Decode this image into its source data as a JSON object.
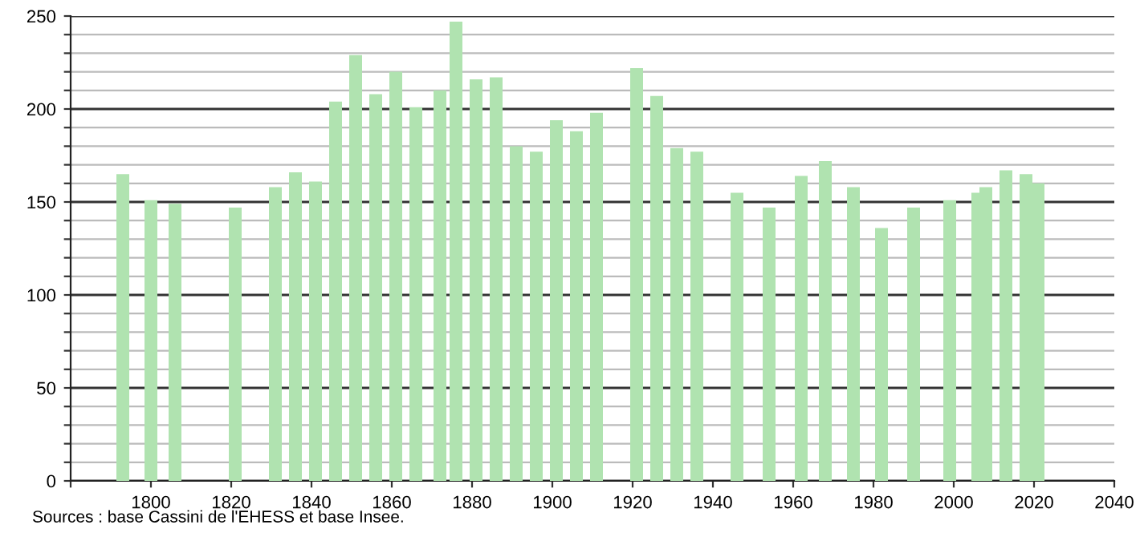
{
  "chart_data": {
    "type": "bar",
    "color": "#b0e3b0",
    "x": [
      1793,
      1800,
      1806,
      1821,
      1831,
      1836,
      1841,
      1846,
      1851,
      1856,
      1861,
      1866,
      1872,
      1876,
      1881,
      1886,
      1891,
      1896,
      1901,
      1906,
      1911,
      1921,
      1926,
      1931,
      1936,
      1946,
      1954,
      1962,
      1968,
      1975,
      1982,
      1990,
      1999,
      2006,
      2008,
      2013,
      2018,
      2021
    ],
    "values": [
      165,
      151,
      149,
      147,
      158,
      166,
      161,
      204,
      229,
      208,
      220,
      201,
      210,
      247,
      216,
      217,
      180,
      177,
      194,
      188,
      198,
      222,
      207,
      179,
      177,
      155,
      147,
      164,
      172,
      158,
      136,
      147,
      151,
      155,
      158,
      167,
      165,
      160
    ],
    "xlim": [
      1780,
      2040
    ],
    "xticks": [
      {
        "value": 1780,
        "label": null
      },
      1800,
      1820,
      1840,
      1860,
      1880,
      1900,
      1920,
      1940,
      1960,
      1980,
      2000,
      2020,
      2040
    ],
    "ylim": [
      0,
      250
    ],
    "yticks": [
      0,
      {
        "value": 10,
        "label": null
      },
      {
        "value": 20,
        "label": null
      },
      {
        "value": 30,
        "label": null
      },
      {
        "value": 40,
        "label": null
      },
      50,
      {
        "value": 60,
        "label": null
      },
      {
        "value": 70,
        "label": null
      },
      {
        "value": 80,
        "label": null
      },
      {
        "value": 90,
        "label": null
      },
      100,
      {
        "value": 110,
        "label": null
      },
      {
        "value": 120,
        "label": null
      },
      {
        "value": 130,
        "label": null
      },
      {
        "value": 140,
        "label": null
      },
      150,
      {
        "value": 160,
        "label": null
      },
      {
        "value": 170,
        "label": null
      },
      {
        "value": 180,
        "label": null
      },
      {
        "value": 190,
        "label": null
      },
      200,
      {
        "value": 210,
        "label": null
      },
      {
        "value": 220,
        "label": null
      },
      {
        "value": 230,
        "label": null
      },
      {
        "value": 240,
        "label": null
      },
      250
    ],
    "grid": "y",
    "annotations": [
      "Sources : base Cassini de l'EHESS et base Insee."
    ]
  }
}
